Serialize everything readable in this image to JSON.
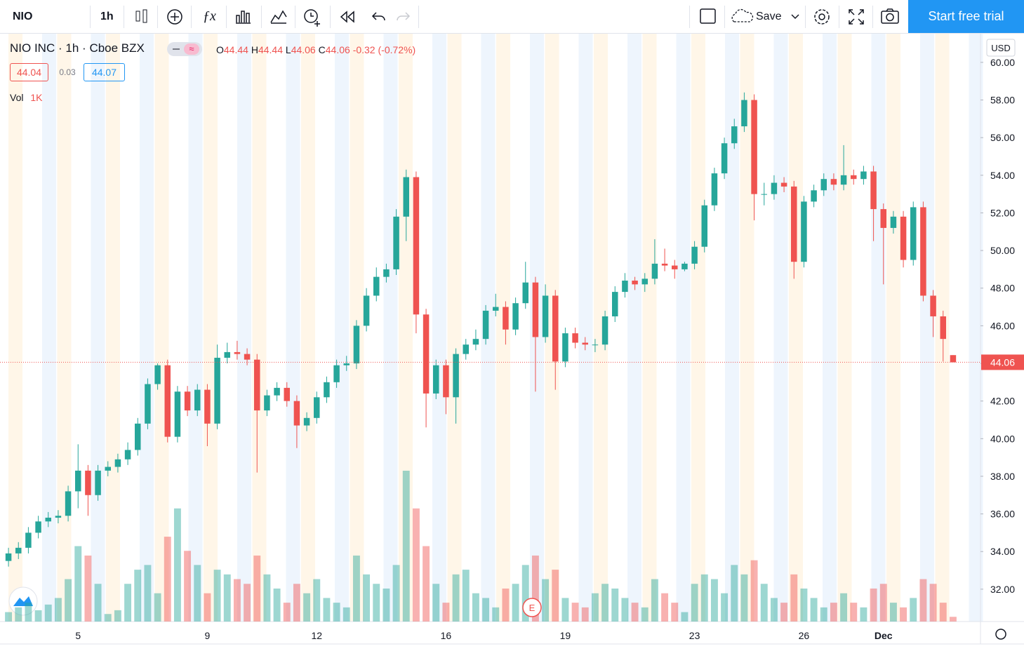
{
  "toolbar": {
    "symbol": "NIO",
    "interval": "1h",
    "save": "Save",
    "trial": "Start free trial"
  },
  "legend": {
    "name": "NIO INC",
    "separator": "·",
    "interval": "1h",
    "exchange": "Cboe BZX",
    "o": "O",
    "h": "H",
    "l": "L",
    "c": "C",
    "change": "-0.32",
    "change_pct": "(-0.72%)",
    "bid": "44.04",
    "spread": "0.03",
    "ask": "44.07",
    "vol": "Vol",
    "vol_value": "1K"
  },
  "currency": "USD",
  "earnings": "E",
  "chart_data": {
    "type": "candlestick",
    "categories": [
      null,
      null,
      null,
      null,
      null,
      null,
      null,
      "5",
      null,
      null,
      null,
      null,
      null,
      null,
      null,
      null,
      null,
      null,
      null,
      null,
      "9",
      null,
      null,
      null,
      null,
      null,
      null,
      null,
      null,
      null,
      null,
      "12",
      null,
      null,
      null,
      null,
      null,
      null,
      null,
      null,
      null,
      null,
      null,
      null,
      "16",
      null,
      null,
      null,
      null,
      null,
      null,
      null,
      null,
      null,
      null,
      null,
      "19",
      null,
      null,
      null,
      null,
      null,
      null,
      null,
      null,
      null,
      null,
      null,
      null,
      "23",
      null,
      null,
      null,
      null,
      null,
      null,
      null,
      null,
      null,
      null,
      "26",
      null,
      null,
      null,
      null,
      null,
      null,
      null,
      "Dec",
      null,
      null,
      null,
      null,
      null,
      null,
      null
    ],
    "open": [
      33.5,
      33.9,
      34.2,
      35.0,
      35.6,
      35.8,
      35.9,
      37.2,
      38.3,
      37.0,
      38.3,
      38.5,
      38.9,
      39.4,
      40.8,
      42.9,
      43.9,
      40.1,
      42.5,
      41.5,
      42.6,
      40.8,
      44.3,
      44.6,
      44.5,
      44.2,
      41.5,
      42.3,
      42.7,
      42.0,
      40.7,
      41.1,
      42.2,
      43.0,
      43.9,
      44.0,
      46.0,
      47.6,
      48.6,
      49.0,
      51.8,
      53.9,
      46.6,
      42.4,
      43.9,
      42.2,
      44.5,
      45.0,
      45.3,
      46.8,
      47.0,
      45.8,
      47.2,
      48.3,
      45.4,
      47.6,
      44.1,
      45.6,
      45.1,
      45.0,
      45.0,
      46.5,
      47.8,
      48.4,
      48.2,
      48.5,
      49.3,
      49.2,
      49.0,
      49.3,
      50.2,
      52.4,
      54.1,
      55.7,
      56.6,
      58.0,
      53.0,
      53.0,
      53.6,
      53.4,
      49.4,
      52.6,
      53.2,
      53.8,
      53.5,
      54.0,
      53.8,
      54.2,
      52.2,
      51.2,
      51.8,
      49.5,
      52.3,
      47.6,
      46.5,
      44.44
    ],
    "high": [
      34.2,
      34.5,
      35.3,
      35.9,
      36.1,
      36.2,
      37.5,
      39.7,
      38.6,
      38.6,
      38.8,
      39.2,
      39.8,
      41.1,
      43.2,
      44.0,
      44.2,
      42.8,
      42.8,
      42.9,
      42.9,
      45.0,
      45.1,
      45.2,
      44.8,
      44.5,
      42.6,
      43.0,
      43.0,
      42.3,
      41.4,
      42.5,
      43.3,
      44.2,
      44.4,
      46.3,
      48.0,
      49.1,
      49.3,
      52.2,
      54.3,
      54.2,
      46.9,
      44.2,
      44.2,
      44.8,
      45.3,
      45.8,
      47.1,
      47.7,
      47.3,
      47.5,
      49.4,
      48.6,
      48.2,
      47.9,
      45.9,
      45.9,
      45.4,
      45.3,
      46.8,
      48.1,
      48.8,
      48.6,
      48.8,
      50.6,
      50.1,
      49.5,
      49.4,
      50.5,
      52.7,
      54.4,
      56.0,
      57.0,
      58.4,
      58.3,
      53.6,
      54.0,
      53.9,
      53.7,
      52.9,
      53.5,
      54.1,
      54.1,
      55.6,
      54.3,
      54.5,
      54.5,
      52.5,
      52.1,
      52.1,
      52.6,
      52.6,
      47.9,
      46.8,
      44.44
    ],
    "low": [
      33.2,
      33.6,
      33.9,
      34.7,
      35.3,
      35.5,
      35.6,
      36.3,
      35.9,
      36.7,
      38.0,
      38.2,
      38.6,
      39.1,
      40.5,
      42.6,
      39.8,
      39.8,
      41.2,
      41.2,
      39.6,
      40.5,
      44.0,
      44.2,
      43.9,
      38.2,
      41.2,
      42.0,
      41.7,
      39.5,
      40.4,
      40.8,
      41.9,
      42.7,
      43.6,
      43.7,
      45.7,
      47.3,
      48.3,
      48.7,
      50.5,
      45.6,
      40.6,
      42.1,
      41.3,
      40.8,
      44.2,
      44.7,
      45.0,
      46.5,
      45.0,
      45.5,
      46.9,
      42.5,
      45.1,
      42.6,
      43.8,
      44.8,
      44.7,
      44.6,
      44.7,
      46.2,
      47.5,
      47.9,
      47.8,
      48.2,
      48.9,
      48.5,
      48.9,
      49.0,
      49.9,
      52.1,
      53.8,
      55.4,
      56.3,
      51.6,
      52.4,
      52.7,
      53.1,
      48.5,
      49.1,
      52.3,
      52.9,
      53.2,
      53.2,
      53.5,
      53.5,
      50.5,
      48.2,
      50.9,
      49.1,
      49.2,
      47.3,
      45.4,
      44.1,
      44.06
    ],
    "close": [
      33.9,
      34.2,
      35.0,
      35.6,
      35.8,
      35.9,
      37.2,
      38.3,
      37.0,
      38.3,
      38.5,
      38.9,
      39.4,
      40.8,
      42.9,
      43.9,
      40.1,
      42.5,
      41.5,
      42.6,
      40.8,
      44.3,
      44.6,
      44.5,
      44.2,
      41.5,
      42.3,
      42.7,
      42.0,
      40.7,
      41.1,
      42.2,
      43.0,
      43.9,
      44.0,
      46.0,
      47.6,
      48.6,
      49.0,
      51.8,
      53.9,
      46.6,
      42.4,
      43.9,
      42.2,
      44.5,
      45.0,
      45.3,
      46.8,
      47.0,
      45.8,
      47.2,
      48.3,
      45.4,
      47.6,
      44.1,
      45.6,
      45.1,
      45.0,
      45.0,
      46.5,
      47.8,
      48.4,
      48.2,
      48.5,
      49.3,
      49.2,
      49.0,
      49.3,
      50.2,
      52.4,
      54.1,
      55.7,
      56.6,
      58.0,
      53.0,
      53.0,
      53.6,
      53.4,
      49.4,
      52.6,
      53.2,
      53.8,
      53.5,
      54.0,
      53.8,
      54.2,
      52.2,
      51.2,
      51.8,
      49.5,
      52.3,
      47.6,
      46.5,
      45.3,
      44.06
    ],
    "volume": [
      10,
      15,
      20,
      12,
      18,
      25,
      45,
      80,
      70,
      40,
      8,
      12,
      40,
      55,
      60,
      30,
      90,
      120,
      75,
      60,
      30,
      55,
      50,
      45,
      40,
      70,
      50,
      35,
      20,
      40,
      30,
      45,
      25,
      20,
      15,
      70,
      50,
      40,
      35,
      60,
      160,
      120,
      80,
      40,
      20,
      50,
      55,
      30,
      25,
      15,
      35,
      40,
      60,
      70,
      45,
      55,
      25,
      20,
      15,
      30,
      40,
      35,
      25,
      20,
      15,
      45,
      30,
      20,
      10,
      40,
      50,
      45,
      30,
      60,
      50,
      65,
      40,
      25,
      20,
      50,
      35,
      25,
      15,
      20,
      30,
      20,
      15,
      35,
      40,
      20,
      15,
      25,
      45,
      40,
      20,
      5
    ],
    "up_color": "#26a69a",
    "down_color": "#ef5350",
    "ylim": [
      30.28,
      61.45
    ],
    "yticks": [
      {
        "value": 32,
        "label": "32.00"
      },
      {
        "value": 34,
        "label": "34.00"
      },
      {
        "value": 36,
        "label": "36.00"
      },
      {
        "value": 38,
        "label": "38.00"
      },
      {
        "value": 40,
        "label": "40.00"
      },
      {
        "value": 42,
        "label": "42.00"
      },
      {
        "value": 44,
        "label": "44.00"
      },
      {
        "value": 46,
        "label": "46.00"
      },
      {
        "value": 48,
        "label": "48.00"
      },
      {
        "value": 50,
        "label": "50.00"
      },
      {
        "value": 52,
        "label": "52.00"
      },
      {
        "value": 54,
        "label": "54.00"
      },
      {
        "value": 56,
        "label": "56.00"
      },
      {
        "value": 58,
        "label": "58.00"
      },
      {
        "value": 60,
        "label": "60.00"
      }
    ]
  }
}
